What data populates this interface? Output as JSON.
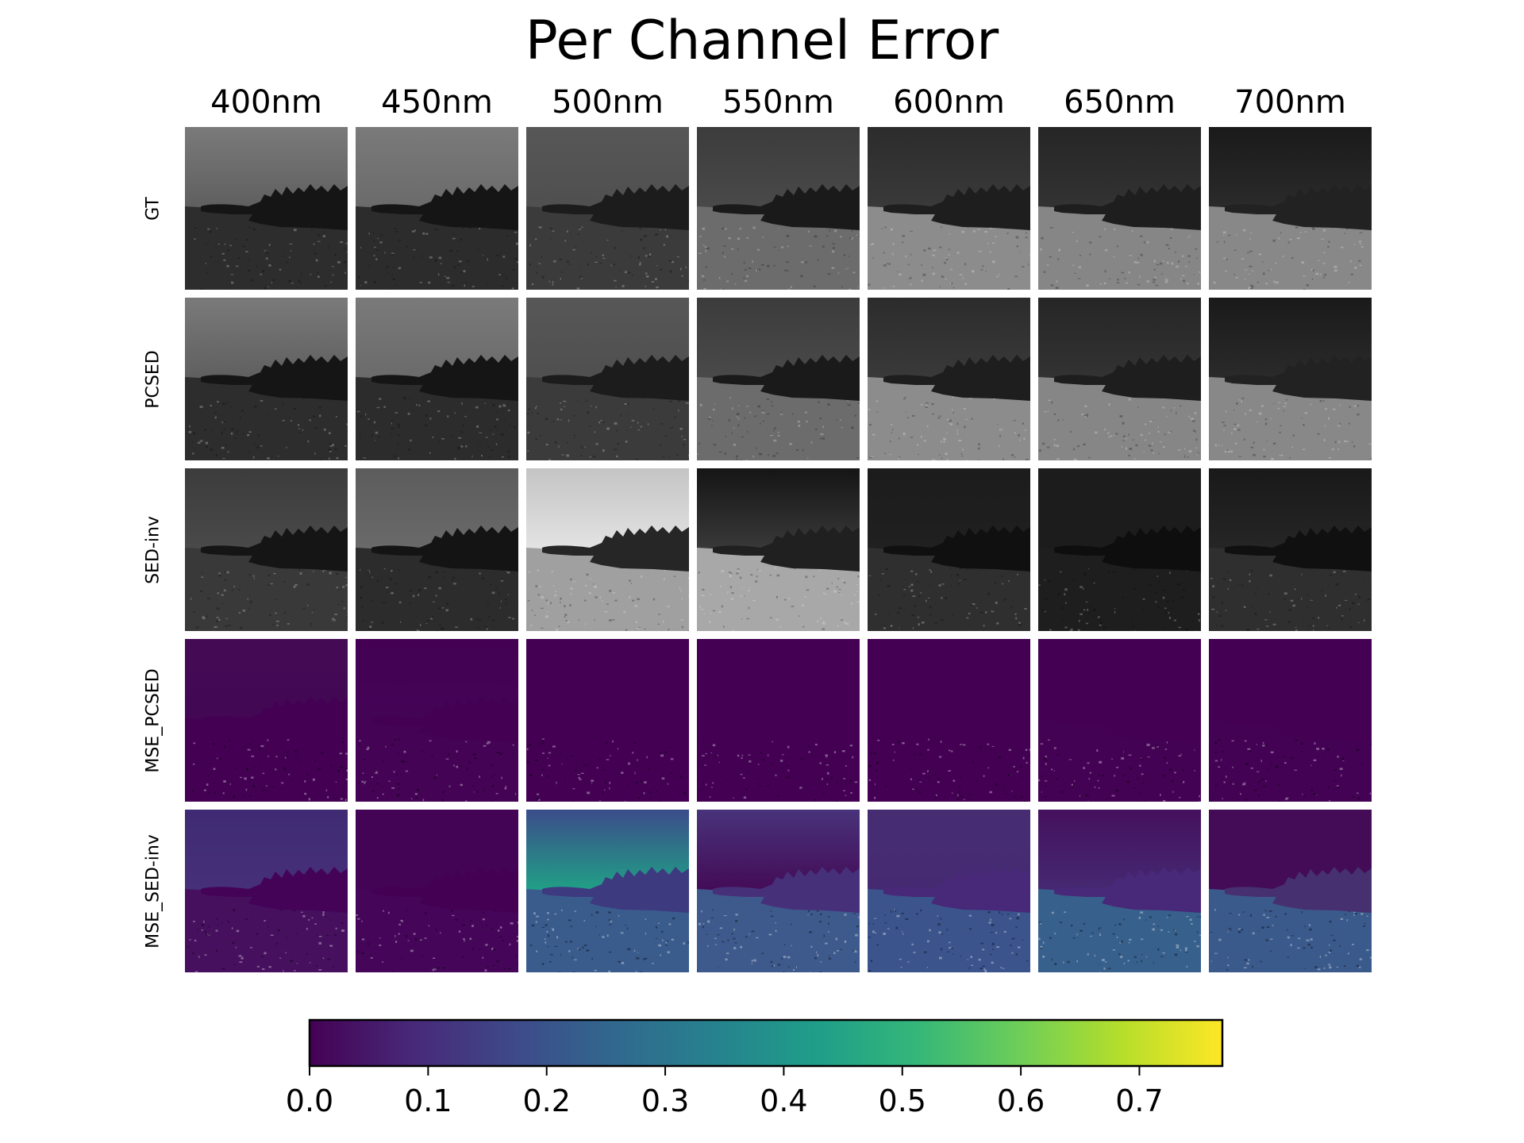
{
  "title": "Per Channel Error",
  "columns": [
    "400nm",
    "450nm",
    "500nm",
    "550nm",
    "600nm",
    "650nm",
    "700nm"
  ],
  "rows": [
    {
      "label": "GT",
      "kind": "gray",
      "tiles": [
        {
          "sky_top": "#7a7a7a",
          "sky_bottom": "#5e5e5e",
          "ground": "#2d2d2d",
          "trees": "#151515"
        },
        {
          "sky_top": "#7a7a7a",
          "sky_bottom": "#6a6a6a",
          "ground": "#2c2c2c",
          "trees": "#151515"
        },
        {
          "sky_top": "#575757",
          "sky_bottom": "#4f4f4f",
          "ground": "#3b3b3b",
          "trees": "#1c1c1c"
        },
        {
          "sky_top": "#3c3c3c",
          "sky_bottom": "#4a4a4a",
          "ground": "#6c6c6c",
          "trees": "#1a1a1a"
        },
        {
          "sky_top": "#2c2c2c",
          "sky_bottom": "#3a3a3a",
          "ground": "#8c8c8c",
          "trees": "#1e1e1e"
        },
        {
          "sky_top": "#262626",
          "sky_bottom": "#333333",
          "ground": "#868686",
          "trees": "#1e1e1e"
        },
        {
          "sky_top": "#1a1a1a",
          "sky_bottom": "#2b2b2b",
          "ground": "#888888",
          "trees": "#222222"
        }
      ]
    },
    {
      "label": "PCSED",
      "kind": "gray",
      "tiles": [
        {
          "sky_top": "#7a7a7a",
          "sky_bottom": "#5e5e5e",
          "ground": "#2d2d2d",
          "trees": "#151515"
        },
        {
          "sky_top": "#7a7a7a",
          "sky_bottom": "#6a6a6a",
          "ground": "#2c2c2c",
          "trees": "#151515"
        },
        {
          "sky_top": "#575757",
          "sky_bottom": "#4f4f4f",
          "ground": "#3b3b3b",
          "trees": "#1c1c1c"
        },
        {
          "sky_top": "#3c3c3c",
          "sky_bottom": "#4a4a4a",
          "ground": "#6c6c6c",
          "trees": "#1a1a1a"
        },
        {
          "sky_top": "#2c2c2c",
          "sky_bottom": "#3a3a3a",
          "ground": "#8c8c8c",
          "trees": "#1e1e1e"
        },
        {
          "sky_top": "#262626",
          "sky_bottom": "#333333",
          "ground": "#868686",
          "trees": "#1e1e1e"
        },
        {
          "sky_top": "#1a1a1a",
          "sky_bottom": "#2b2b2b",
          "ground": "#888888",
          "trees": "#222222"
        }
      ]
    },
    {
      "label": "SED-inv",
      "kind": "gray",
      "tiles": [
        {
          "sky_top": "#3c3c3c",
          "sky_bottom": "#4a4a4a",
          "ground": "#393939",
          "trees": "#151515"
        },
        {
          "sky_top": "#5c5c5c",
          "sky_bottom": "#6a6a6a",
          "ground": "#2c2c2c",
          "trees": "#141414"
        },
        {
          "sky_top": "#c4c4c4",
          "sky_bottom": "#e4e4e4",
          "ground": "#a0a0a0",
          "trees": "#262626"
        },
        {
          "sky_top": "#151515",
          "sky_bottom": "#3a3a3a",
          "ground": "#a8a8a8",
          "trees": "#202020"
        },
        {
          "sky_top": "#1c1c1c",
          "sky_bottom": "#202020",
          "ground": "#2f2f2f",
          "trees": "#101010"
        },
        {
          "sky_top": "#1c1c1c",
          "sky_bottom": "#1c1c1c",
          "ground": "#1e1e1e",
          "trees": "#0e0e0e"
        },
        {
          "sky_top": "#191919",
          "sky_bottom": "#262626",
          "ground": "#2f2f2f",
          "trees": "#101010"
        }
      ]
    },
    {
      "label": "MSE_PCSED",
      "kind": "error",
      "tiles": [
        {
          "sky_top": "#440b54",
          "sky_bottom": "#430754",
          "ground": "#440154",
          "trees": "#440154"
        },
        {
          "sky_top": "#440154",
          "sky_bottom": "#440456",
          "ground": "#440355",
          "trees": "#440154"
        },
        {
          "sky_top": "#440154",
          "sky_bottom": "#440154",
          "ground": "#440154",
          "trees": "#440154"
        },
        {
          "sky_top": "#440154",
          "sky_bottom": "#440154",
          "ground": "#440154",
          "trees": "#440154"
        },
        {
          "sky_top": "#440154",
          "sky_bottom": "#440154",
          "ground": "#440154",
          "trees": "#440154"
        },
        {
          "sky_top": "#440154",
          "sky_bottom": "#440154",
          "ground": "#440254",
          "trees": "#440154"
        },
        {
          "sky_top": "#440154",
          "sky_bottom": "#440154",
          "ground": "#440255",
          "trees": "#440154"
        }
      ]
    },
    {
      "label": "MSE_SED-inv",
      "kind": "error",
      "tiles": [
        {
          "sky_top": "#3f2a74",
          "sky_bottom": "#46307a",
          "ground": "#46105f",
          "trees": "#440356"
        },
        {
          "sky_top": "#440456",
          "sky_bottom": "#440456",
          "ground": "#45065a",
          "trees": "#440154"
        },
        {
          "sky_top": "#3b4c8a",
          "sky_bottom": "#20a386",
          "ground": "#3a5c8d",
          "trees": "#3d3a80"
        },
        {
          "sky_top": "#48337a",
          "sky_bottom": "#440a56",
          "ground": "#3e5a8c",
          "trees": "#47307a"
        },
        {
          "sky_top": "#462d72",
          "sky_bottom": "#452a72",
          "ground": "#3b548c",
          "trees": "#482878"
        },
        {
          "sky_top": "#45105e",
          "sky_bottom": "#452a72",
          "ground": "#38608c",
          "trees": "#482878"
        },
        {
          "sky_top": "#440b57",
          "sky_bottom": "#440b57",
          "ground": "#3b5a8c",
          "trees": "#463070"
        }
      ]
    }
  ],
  "chart_data": {
    "type": "heatmap",
    "title": "Per Channel Error",
    "colormap": "viridis",
    "colorbar": {
      "vmin": 0.0,
      "vmax": 0.77,
      "ticks": [
        0.0,
        0.1,
        0.2,
        0.3,
        0.4,
        0.5,
        0.6,
        0.7
      ],
      "tick_labels": [
        "0.0",
        "0.1",
        "0.2",
        "0.3",
        "0.4",
        "0.5",
        "0.6",
        "0.7"
      ],
      "orientation": "horizontal",
      "stops": [
        "#440154",
        "#482878",
        "#3e4989",
        "#31688e",
        "#26828e",
        "#1f9e89",
        "#35b779",
        "#6ece58",
        "#b5de2b",
        "#fde725"
      ]
    }
  }
}
